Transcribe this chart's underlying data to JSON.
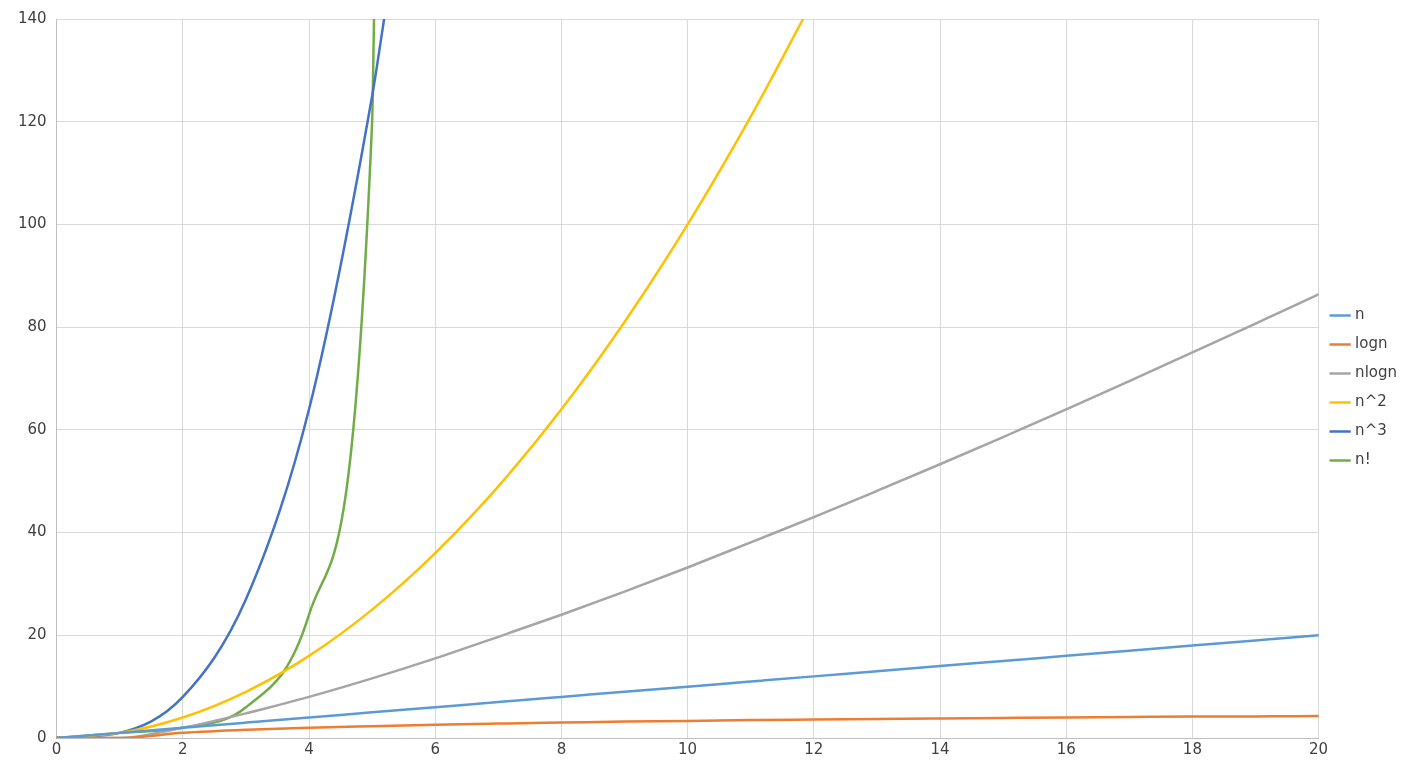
{
  "chart_data": {
    "type": "line",
    "x": [
      0,
      1,
      2,
      3,
      4,
      5,
      6,
      7,
      8,
      9,
      10,
      11,
      12,
      13,
      14,
      15,
      16,
      17,
      18,
      19,
      20
    ],
    "series": [
      {
        "name": "n",
        "color": "#5b9bd5",
        "values": [
          0,
          1,
          2,
          3,
          4,
          5,
          6,
          7,
          8,
          9,
          10,
          11,
          12,
          13,
          14,
          15,
          16,
          17,
          18,
          19,
          20
        ]
      },
      {
        "name": "logn",
        "color": "#ed7d31",
        "values": [
          0,
          0,
          1,
          1.6,
          2,
          2.3,
          2.6,
          2.8,
          3,
          3.2,
          3.3,
          3.5,
          3.6,
          3.7,
          3.8,
          3.9,
          4,
          4.1,
          4.2,
          4.2,
          4.3
        ]
      },
      {
        "name": "nlogn",
        "color": "#a5a5a5",
        "values": [
          0,
          0,
          2,
          4.8,
          8,
          11.6,
          15.5,
          19.7,
          24,
          28.5,
          33.2,
          38.1,
          43,
          48.1,
          53.3,
          58.6,
          64,
          69.5,
          75.1,
          80.7,
          86.4
        ]
      },
      {
        "name": "n^2",
        "color": "#ffc000",
        "x": [
          0,
          1,
          2,
          3,
          4,
          5,
          6,
          7,
          8,
          9,
          10,
          11,
          11.83
        ],
        "values": [
          0,
          1,
          4,
          9,
          16,
          25,
          36,
          49,
          64,
          81,
          100,
          121,
          140
        ]
      },
      {
        "name": "n^3",
        "color": "#4472c4",
        "x": [
          0,
          1,
          2,
          3,
          4,
          5,
          5.19
        ],
        "values": [
          0,
          1,
          8,
          27,
          64,
          125,
          140
        ]
      },
      {
        "name": "n!",
        "color": "#70ad47",
        "x": [
          0,
          1,
          2,
          3,
          4,
          5,
          5.03
        ],
        "values": [
          0,
          1,
          2,
          6,
          24,
          120,
          140
        ]
      }
    ],
    "xlim": [
      0,
      20
    ],
    "ylim": [
      0,
      140
    ],
    "xticks": [
      0,
      2,
      4,
      6,
      8,
      10,
      12,
      14,
      16,
      18,
      20
    ],
    "yticks": [
      0,
      20,
      40,
      60,
      80,
      100,
      120,
      140
    ],
    "grid": true,
    "legend": "right",
    "line_style": "solid"
  }
}
